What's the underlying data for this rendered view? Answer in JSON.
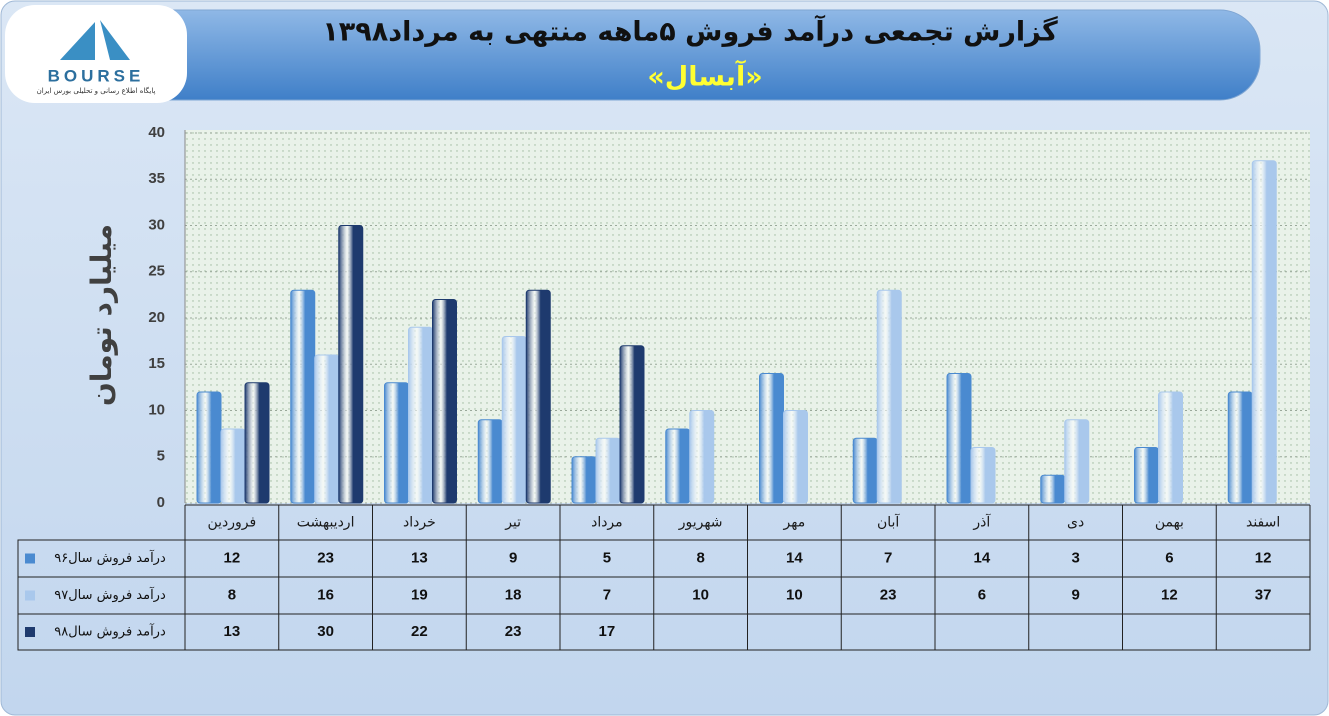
{
  "header": {
    "logo_text": "BOURSE",
    "logo_subtitle": "پایگاه اطلاع رسانی و تحلیلی بورس ایران"
  },
  "chart_data": {
    "type": "bar",
    "title": "گزارش تجمعی درآمد فروش ۵ماهه منتهی به مرداد۱۳۹۸",
    "subtitle": "«آبسال»",
    "y_label": "میلیارد تومان",
    "categories": [
      "فروردین",
      "اردیبهشت",
      "خرداد",
      "تیر",
      "مرداد",
      "شهریور",
      "مهر",
      "آبان",
      "آذر",
      "دی",
      "بهمن",
      "اسفند"
    ],
    "series": [
      {
        "name": "درآمد فروش سال۹۶",
        "color": "#4a8ad0",
        "values": [
          12,
          23,
          13,
          9,
          5,
          8,
          14,
          7,
          14,
          3,
          6,
          12
        ]
      },
      {
        "name": "درآمد فروش سال۹۷",
        "color": "#a9c8ec",
        "values": [
          8,
          16,
          19,
          18,
          7,
          10,
          10,
          23,
          6,
          9,
          12,
          37
        ]
      },
      {
        "name": "درآمد فروش سال۹۸",
        "color": "#1e3a6e",
        "values": [
          13,
          30,
          22,
          23,
          17,
          null,
          null,
          null,
          null,
          null,
          null,
          null
        ]
      }
    ],
    "ylim": [
      0,
      40
    ],
    "yticks": [
      0,
      5,
      10,
      15,
      20,
      25,
      30,
      35,
      40
    ],
    "grid": true
  }
}
